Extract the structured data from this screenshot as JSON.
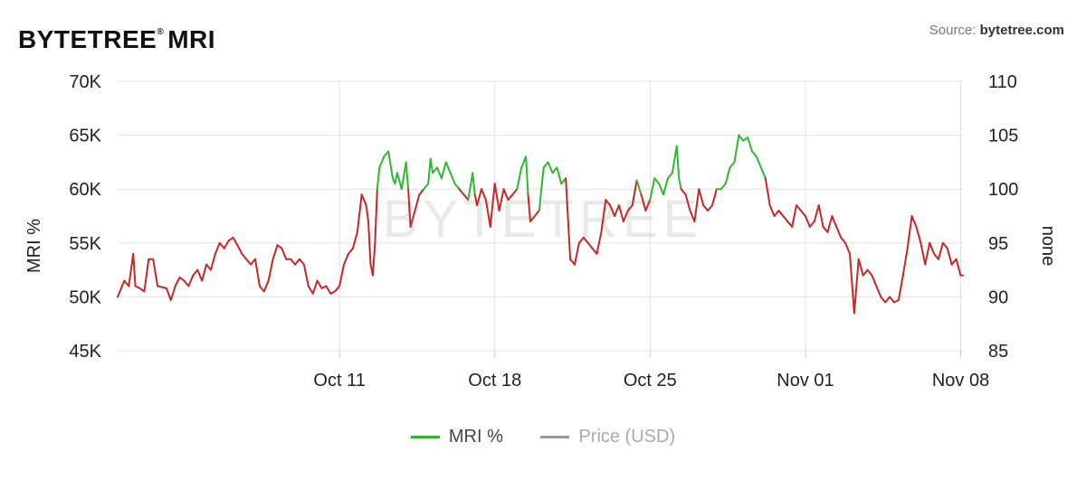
{
  "header": {
    "title": "BYTETREE",
    "registered_mark": "®",
    "title_suffix": "MRI",
    "source_label": "Source:",
    "source_value": "bytetree.com"
  },
  "watermark": "BYTETREE",
  "colors": {
    "up": "#2eb82e",
    "down": "#c62828",
    "grid": "#e2e2e2",
    "axis_text": "#222222",
    "price_legend": "#999999"
  },
  "legend": {
    "items": [
      {
        "label": "MRI %",
        "color": "#2eb82e",
        "active": true
      },
      {
        "label": "Price (USD)",
        "color": "#999999",
        "active": false
      }
    ]
  },
  "chart_data": {
    "type": "line",
    "title": "",
    "ylabel_left": "MRI %",
    "ylabel_right": "none",
    "left_axis": {
      "min": 45000,
      "max": 70000,
      "ticks": [
        "45K",
        "50K",
        "55K",
        "60K",
        "65K",
        "70K"
      ]
    },
    "right_axis": {
      "min": 85,
      "max": 110,
      "ticks": [
        "85",
        "90",
        "95",
        "100",
        "105",
        "110"
      ]
    },
    "x_ticks": [
      {
        "label": "Oct 11",
        "day": 10
      },
      {
        "label": "Oct 18",
        "day": 17
      },
      {
        "label": "Oct 25",
        "day": 24
      },
      {
        "label": "Nov 01",
        "day": 31
      },
      {
        "label": "Nov 08",
        "day": 38
      }
    ],
    "x_domain": {
      "start_day": 0,
      "end_day": 38.1
    },
    "color_threshold": 60000,
    "grid": true,
    "series": [
      {
        "name": "MRI %",
        "points": [
          [
            0.0,
            50000
          ],
          [
            0.3,
            51500
          ],
          [
            0.5,
            51000
          ],
          [
            0.7,
            54000
          ],
          [
            0.8,
            51000
          ],
          [
            1.0,
            50800
          ],
          [
            1.2,
            50500
          ],
          [
            1.4,
            53500
          ],
          [
            1.6,
            53500
          ],
          [
            1.8,
            51000
          ],
          [
            2.2,
            50800
          ],
          [
            2.4,
            49700
          ],
          [
            2.6,
            51000
          ],
          [
            2.8,
            51800
          ],
          [
            3.0,
            51500
          ],
          [
            3.2,
            51000
          ],
          [
            3.4,
            52000
          ],
          [
            3.6,
            52500
          ],
          [
            3.8,
            51500
          ],
          [
            4.0,
            53000
          ],
          [
            4.2,
            52500
          ],
          [
            4.4,
            54000
          ],
          [
            4.6,
            55000
          ],
          [
            4.8,
            54500
          ],
          [
            5.0,
            55200
          ],
          [
            5.2,
            55500
          ],
          [
            5.4,
            54800
          ],
          [
            5.6,
            54000
          ],
          [
            5.8,
            53500
          ],
          [
            6.0,
            53000
          ],
          [
            6.2,
            53500
          ],
          [
            6.4,
            51000
          ],
          [
            6.6,
            50500
          ],
          [
            6.8,
            51500
          ],
          [
            7.0,
            53500
          ],
          [
            7.2,
            54800
          ],
          [
            7.4,
            54500
          ],
          [
            7.6,
            53500
          ],
          [
            7.8,
            53500
          ],
          [
            8.0,
            53000
          ],
          [
            8.2,
            53500
          ],
          [
            8.4,
            53000
          ],
          [
            8.6,
            51000
          ],
          [
            8.8,
            50300
          ],
          [
            9.0,
            51500
          ],
          [
            9.2,
            50800
          ],
          [
            9.4,
            51000
          ],
          [
            9.6,
            50300
          ],
          [
            9.8,
            50500
          ],
          [
            10.0,
            51000
          ],
          [
            10.2,
            53000
          ],
          [
            10.4,
            54000
          ],
          [
            10.6,
            54500
          ],
          [
            10.8,
            56000
          ],
          [
            11.0,
            59500
          ],
          [
            11.2,
            58500
          ],
          [
            11.3,
            57000
          ],
          [
            11.4,
            53000
          ],
          [
            11.5,
            52000
          ],
          [
            11.6,
            55000
          ],
          [
            11.7,
            60000
          ],
          [
            11.8,
            62000
          ],
          [
            12.0,
            63000
          ],
          [
            12.2,
            63500
          ],
          [
            12.4,
            61000
          ],
          [
            12.5,
            60500
          ],
          [
            12.6,
            61500
          ],
          [
            12.8,
            60000
          ],
          [
            13.0,
            62500
          ],
          [
            13.1,
            60000
          ],
          [
            13.2,
            56500
          ],
          [
            13.4,
            58000
          ],
          [
            13.6,
            59500
          ],
          [
            13.8,
            60000
          ],
          [
            14.0,
            60500
          ],
          [
            14.1,
            62800
          ],
          [
            14.2,
            61500
          ],
          [
            14.4,
            62000
          ],
          [
            14.6,
            61000
          ],
          [
            14.8,
            62500
          ],
          [
            15.0,
            61500
          ],
          [
            15.2,
            60500
          ],
          [
            15.4,
            60000
          ],
          [
            15.6,
            59500
          ],
          [
            15.8,
            59000
          ],
          [
            16.0,
            61500
          ],
          [
            16.1,
            59500
          ],
          [
            16.2,
            58500
          ],
          [
            16.4,
            60000
          ],
          [
            16.6,
            59000
          ],
          [
            16.8,
            56500
          ],
          [
            17.0,
            60500
          ],
          [
            17.2,
            58000
          ],
          [
            17.4,
            60000
          ],
          [
            17.6,
            59000
          ],
          [
            17.8,
            59500
          ],
          [
            18.0,
            60000
          ],
          [
            18.2,
            62000
          ],
          [
            18.4,
            63000
          ],
          [
            18.5,
            59500
          ],
          [
            18.6,
            57000
          ],
          [
            18.8,
            57500
          ],
          [
            19.0,
            58000
          ],
          [
            19.2,
            62000
          ],
          [
            19.4,
            62500
          ],
          [
            19.6,
            61500
          ],
          [
            19.8,
            62000
          ],
          [
            20.0,
            60500
          ],
          [
            20.2,
            61000
          ],
          [
            20.4,
            53500
          ],
          [
            20.6,
            53000
          ],
          [
            20.8,
            55000
          ],
          [
            21.0,
            55500
          ],
          [
            21.2,
            55000
          ],
          [
            21.4,
            54500
          ],
          [
            21.6,
            54000
          ],
          [
            21.8,
            56000
          ],
          [
            22.0,
            59000
          ],
          [
            22.2,
            58500
          ],
          [
            22.4,
            57500
          ],
          [
            22.6,
            58500
          ],
          [
            22.8,
            57000
          ],
          [
            23.0,
            58000
          ],
          [
            23.2,
            58500
          ],
          [
            23.4,
            60800
          ],
          [
            23.6,
            59500
          ],
          [
            23.8,
            58000
          ],
          [
            24.0,
            59000
          ],
          [
            24.2,
            61000
          ],
          [
            24.4,
            60500
          ],
          [
            24.6,
            59500
          ],
          [
            24.8,
            61000
          ],
          [
            25.0,
            61500
          ],
          [
            25.2,
            64000
          ],
          [
            25.3,
            61000
          ],
          [
            25.4,
            60000
          ],
          [
            25.6,
            59500
          ],
          [
            25.8,
            58000
          ],
          [
            26.0,
            57000
          ],
          [
            26.2,
            60000
          ],
          [
            26.4,
            58500
          ],
          [
            26.6,
            58000
          ],
          [
            26.8,
            58500
          ],
          [
            27.0,
            60000
          ],
          [
            27.2,
            60000
          ],
          [
            27.4,
            60500
          ],
          [
            27.6,
            62000
          ],
          [
            27.8,
            62500
          ],
          [
            28.0,
            65000
          ],
          [
            28.2,
            64500
          ],
          [
            28.4,
            64800
          ],
          [
            28.6,
            63500
          ],
          [
            28.8,
            63000
          ],
          [
            29.0,
            62000
          ],
          [
            29.2,
            61000
          ],
          [
            29.4,
            58500
          ],
          [
            29.6,
            57500
          ],
          [
            29.8,
            58000
          ],
          [
            30.0,
            57500
          ],
          [
            30.2,
            57000
          ],
          [
            30.4,
            56500
          ],
          [
            30.6,
            58500
          ],
          [
            30.8,
            58000
          ],
          [
            31.0,
            57500
          ],
          [
            31.2,
            56500
          ],
          [
            31.4,
            57000
          ],
          [
            31.6,
            58500
          ],
          [
            31.8,
            56500
          ],
          [
            32.0,
            56000
          ],
          [
            32.2,
            57500
          ],
          [
            32.4,
            56500
          ],
          [
            32.6,
            55500
          ],
          [
            32.8,
            55000
          ],
          [
            33.0,
            54000
          ],
          [
            33.2,
            48500
          ],
          [
            33.4,
            53500
          ],
          [
            33.6,
            52000
          ],
          [
            33.8,
            52500
          ],
          [
            34.0,
            52000
          ],
          [
            34.2,
            51000
          ],
          [
            34.4,
            50000
          ],
          [
            34.6,
            49500
          ],
          [
            34.8,
            50000
          ],
          [
            35.0,
            49500
          ],
          [
            35.2,
            49700
          ],
          [
            35.4,
            52000
          ],
          [
            35.6,
            54500
          ],
          [
            35.8,
            57500
          ],
          [
            36.0,
            56500
          ],
          [
            36.2,
            55000
          ],
          [
            36.4,
            53000
          ],
          [
            36.6,
            55000
          ],
          [
            36.8,
            54000
          ],
          [
            37.0,
            53500
          ],
          [
            37.2,
            55000
          ],
          [
            37.4,
            54500
          ],
          [
            37.6,
            53000
          ],
          [
            37.8,
            53500
          ],
          [
            38.0,
            52000
          ],
          [
            38.1,
            52000
          ]
        ]
      }
    ]
  }
}
